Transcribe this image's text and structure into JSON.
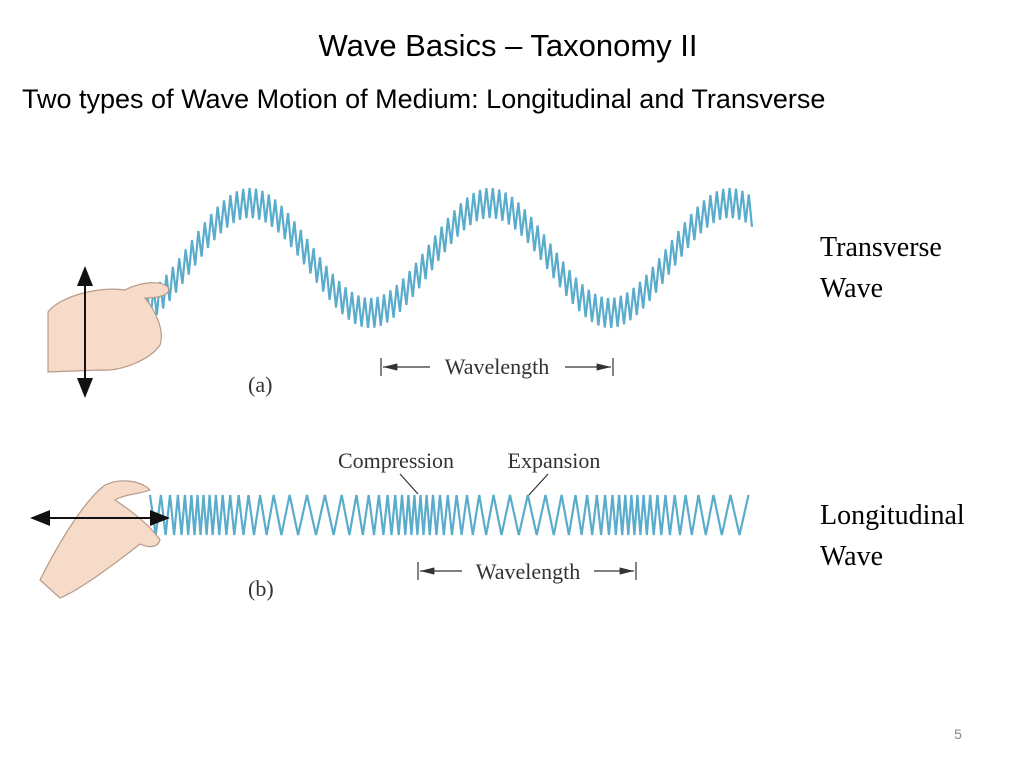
{
  "title": "Wave Basics – Taxonomy II",
  "subtitle": "Two types of Wave Motion of Medium: Longitudinal and Transverse",
  "figure_a": {
    "label": "(a)",
    "wavelength_label": "Wavelength"
  },
  "figure_b": {
    "label": "(b)",
    "compression_label": "Compression",
    "expansion_label": "Expansion",
    "wavelength_label": "Wavelength"
  },
  "captions": [
    {
      "lines": [
        "Transverse",
        "Wave"
      ]
    },
    {
      "lines": [
        "Longitudinal",
        "Wave"
      ]
    }
  ],
  "page_number": "5"
}
